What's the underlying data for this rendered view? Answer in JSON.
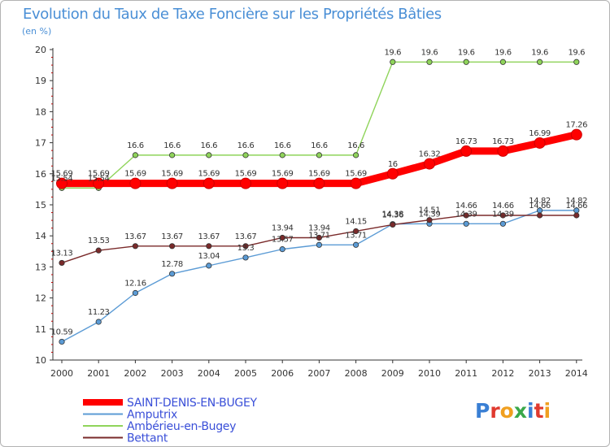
{
  "title": "Evolution du Taux de Taxe Foncière sur les Propriétés Bâties",
  "unit_label": "(en %)",
  "logo": {
    "text": "Proxiti",
    "letters": [
      {
        "ch": "P",
        "color": "#3a7fd4"
      },
      {
        "ch": "r",
        "color": "#e03a2f"
      },
      {
        "ch": "o",
        "color": "#f0a020"
      },
      {
        "ch": "x",
        "color": "#3aa84a"
      },
      {
        "ch": "i",
        "color": "#3a7fd4"
      },
      {
        "ch": "t",
        "color": "#e03a2f"
      },
      {
        "ch": "i",
        "color": "#f0a020"
      }
    ]
  },
  "chart_data": {
    "type": "line",
    "title": "Evolution du Taux de Taxe Foncière sur les Propriétés Bâties",
    "ylabel": "(en %)",
    "xlabel": "",
    "ylim": [
      10,
      20
    ],
    "y_ticks": [
      10,
      11,
      12,
      13,
      14,
      15,
      16,
      17,
      18,
      19,
      20
    ],
    "grid": false,
    "legend_position": "bottom-left",
    "x": [
      "2000",
      "2001",
      "2002",
      "2003",
      "2004",
      "2005",
      "2006",
      "2007",
      "2008",
      "2009",
      "2010",
      "2011",
      "2012",
      "2013",
      "2014"
    ],
    "series": [
      {
        "name": "SAINT-DENIS-EN-BUGEY",
        "color": "#ff0000",
        "emphasis": true,
        "values": [
          15.69,
          15.69,
          15.69,
          15.69,
          15.69,
          15.69,
          15.69,
          15.69,
          15.69,
          16,
          16.32,
          16.73,
          16.73,
          16.99,
          17.26
        ],
        "labels": [
          "15.69",
          "15.69",
          "15.69",
          "15.69",
          "15.69",
          "15.69",
          "15.69",
          "15.69",
          "15.69",
          "16",
          "16.32",
          "16.73",
          "16.73",
          "16.99",
          "17.26"
        ]
      },
      {
        "name": "Amputrix",
        "color": "#5b9bd5",
        "values": [
          10.59,
          11.23,
          12.16,
          12.78,
          13.04,
          13.3,
          13.57,
          13.71,
          13.71,
          14.38,
          14.39,
          14.39,
          14.39,
          14.82,
          14.82
        ],
        "labels": [
          "10.59",
          "11.23",
          "12.16",
          "12.78",
          "13.04",
          "13.3",
          "13.57",
          "13.71",
          "13.71",
          "14.38",
          "14.39",
          "14.39",
          "14.39",
          "14.82",
          "14.82"
        ]
      },
      {
        "name": "Ambérieu-en-Bugey",
        "color": "#8fd45a",
        "values": [
          15.54,
          15.54,
          16.6,
          16.6,
          16.6,
          16.6,
          16.6,
          16.6,
          16.6,
          19.6,
          19.6,
          19.6,
          19.6,
          19.6,
          19.6
        ],
        "labels": [
          "15.54",
          "15.54",
          "16.6",
          "16.6",
          "16.6",
          "16.6",
          "16.6",
          "16.6",
          "16.6",
          "19.6",
          "19.6",
          "19.6",
          "19.6",
          "19.6",
          "19.6"
        ]
      },
      {
        "name": "Bettant",
        "color": "#7a2a2a",
        "values": [
          13.13,
          13.53,
          13.67,
          13.67,
          13.67,
          13.67,
          13.94,
          13.94,
          14.15,
          14.36,
          14.51,
          14.66,
          14.66,
          14.66,
          14.66
        ],
        "labels": [
          "13.13",
          "13.53",
          "13.67",
          "13.67",
          "13.67",
          "13.67",
          "13.94",
          "13.94",
          "14.15",
          "14.36",
          "14.51",
          "14.66",
          "14.66",
          "14.66",
          "14.66"
        ]
      }
    ]
  }
}
